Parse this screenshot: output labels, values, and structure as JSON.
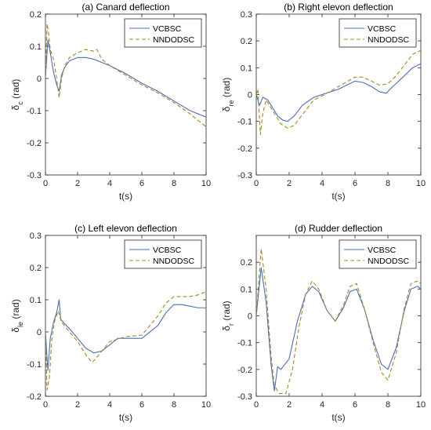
{
  "chart_data": [
    {
      "type": "line",
      "title": "(a) Canard deflection",
      "xlabel": "t(s)",
      "ylabel": {
        "main": "δ",
        "sub": "c",
        "unit": " (rad)"
      },
      "xlim": [
        0,
        10
      ],
      "ylim": [
        -0.3,
        0.2
      ],
      "xticks": [
        0,
        2,
        4,
        6,
        8,
        10
      ],
      "yticks": [
        -0.3,
        -0.2,
        -0.1,
        0,
        0.1,
        0.2
      ],
      "grid": false,
      "legend": "top-right",
      "series": [
        {
          "name": "VCBSC",
          "color": "#4a6fb5",
          "dash": "",
          "x": [
            0,
            0.15,
            0.3,
            0.5,
            0.7,
            0.85,
            1.0,
            1.2,
            1.5,
            2.0,
            2.5,
            3.0,
            3.5,
            4.0,
            5.0,
            6.0,
            7.0,
            8.0,
            9.0,
            10.0
          ],
          "y": [
            0.0,
            0.12,
            0.08,
            0.02,
            -0.02,
            -0.04,
            0.01,
            0.035,
            0.055,
            0.065,
            0.065,
            0.06,
            0.05,
            0.04,
            0.015,
            -0.015,
            -0.04,
            -0.07,
            -0.1,
            -0.12
          ]
        },
        {
          "name": "NNDODSC",
          "color": "#a08a1f",
          "dash": "5,3",
          "x": [
            0,
            0.1,
            0.2,
            0.3,
            0.5,
            0.7,
            0.85,
            1.0,
            1.2,
            1.5,
            2.0,
            2.5,
            3.0,
            3.2,
            3.5,
            4.0,
            5.0,
            6.0,
            7.0,
            8.0,
            9.0,
            10.0
          ],
          "y": [
            0.0,
            0.17,
            0.14,
            0.09,
            0.06,
            0.0,
            -0.06,
            0.0,
            0.04,
            0.065,
            0.08,
            0.09,
            0.085,
            0.09,
            0.06,
            0.04,
            0.01,
            -0.02,
            -0.045,
            -0.075,
            -0.11,
            -0.15
          ]
        }
      ]
    },
    {
      "type": "line",
      "title": "(b) Right elevon deflection",
      "xlabel": "t(s)",
      "ylabel": {
        "main": "δ",
        "sub": "re",
        "unit": " (rad)"
      },
      "xlim": [
        0,
        10
      ],
      "ylim": [
        -0.3,
        0.3
      ],
      "xticks": [
        0,
        2,
        4,
        6,
        8,
        10
      ],
      "yticks": [
        -0.3,
        -0.2,
        -0.1,
        0,
        0.1,
        0.2,
        0.3
      ],
      "grid": false,
      "legend": "top-right",
      "series": [
        {
          "name": "VCBSC",
          "color": "#4a6fb5",
          "dash": "",
          "x": [
            0,
            0.2,
            0.4,
            0.7,
            1.0,
            1.3,
            1.6,
            1.9,
            2.3,
            2.8,
            3.5,
            4.0,
            5.0,
            6.0,
            6.5,
            7.0,
            7.5,
            7.9,
            8.3,
            9.0,
            9.5,
            10.0
          ],
          "y": [
            0.0,
            -0.04,
            -0.01,
            -0.02,
            -0.05,
            -0.08,
            -0.095,
            -0.1,
            -0.08,
            -0.04,
            -0.01,
            0.0,
            0.02,
            0.05,
            0.045,
            0.03,
            0.01,
            0.005,
            0.03,
            0.07,
            0.1,
            0.115
          ]
        },
        {
          "name": "NNDODSC",
          "color": "#a08a1f",
          "dash": "5,3",
          "x": [
            0,
            0.1,
            0.25,
            0.4,
            0.6,
            0.9,
            1.2,
            1.5,
            1.9,
            2.3,
            2.8,
            3.5,
            4.0,
            5.0,
            6.0,
            6.5,
            7.0,
            7.5,
            8.0,
            8.5,
            9.0,
            9.5,
            10.0
          ],
          "y": [
            0.0,
            0.02,
            -0.15,
            -0.07,
            -0.02,
            -0.05,
            -0.08,
            -0.11,
            -0.125,
            -0.115,
            -0.075,
            -0.02,
            -0.005,
            0.03,
            0.065,
            0.065,
            0.05,
            0.035,
            0.04,
            0.07,
            0.11,
            0.15,
            0.165
          ]
        }
      ]
    },
    {
      "type": "line",
      "title": "(c) Left elevon deflection",
      "xlabel": "t(s)",
      "ylabel": {
        "main": "δ",
        "sub": "le",
        "unit": " (rad)"
      },
      "xlim": [
        0,
        10
      ],
      "ylim": [
        -0.2,
        0.3
      ],
      "xticks": [
        0,
        2,
        4,
        6,
        8,
        10
      ],
      "yticks": [
        -0.2,
        -0.1,
        0,
        0.1,
        0.2,
        0.3
      ],
      "grid": false,
      "legend": "top-right",
      "series": [
        {
          "name": "VCBSC",
          "color": "#4a6fb5",
          "dash": "",
          "x": [
            0,
            0.15,
            0.3,
            0.5,
            0.7,
            0.85,
            0.95,
            1.1,
            1.5,
            2.0,
            2.5,
            3.0,
            3.5,
            4.0,
            4.5,
            5.0,
            6.0,
            7.0,
            7.5,
            8.0,
            8.5,
            9.0,
            9.5,
            10.0
          ],
          "y": [
            0.0,
            -0.12,
            -0.02,
            0.03,
            0.06,
            0.1,
            0.04,
            0.03,
            0.01,
            -0.02,
            -0.05,
            -0.065,
            -0.06,
            -0.04,
            -0.02,
            -0.02,
            -0.02,
            0.02,
            0.06,
            0.085,
            0.085,
            0.08,
            0.075,
            0.075
          ]
        },
        {
          "name": "NNDODSC",
          "color": "#a08a1f",
          "dash": "5,3",
          "x": [
            0,
            0.1,
            0.25,
            0.4,
            0.6,
            0.8,
            1.0,
            1.5,
            2.0,
            2.5,
            2.9,
            3.1,
            3.5,
            4.0,
            5.0,
            6.0,
            7.0,
            7.5,
            8.0,
            9.0,
            9.5,
            10.0
          ],
          "y": [
            0.0,
            -0.18,
            -0.14,
            -0.02,
            0.04,
            0.065,
            0.03,
            0.0,
            -0.03,
            -0.07,
            -0.095,
            -0.085,
            -0.06,
            -0.03,
            -0.015,
            -0.01,
            0.05,
            0.09,
            0.11,
            0.11,
            0.115,
            0.125
          ]
        }
      ]
    },
    {
      "type": "line",
      "title": "(d) Rudder deflection",
      "xlabel": "t(s)",
      "ylabel": {
        "main": "δ",
        "sub": "r",
        "unit": " (rad)"
      },
      "xlim": [
        0,
        10
      ],
      "ylim": [
        -0.3,
        0.3
      ],
      "xticks": [
        0,
        2,
        4,
        6,
        8,
        10
      ],
      "yticks": [
        -0.3,
        -0.2,
        -0.1,
        0,
        0.1,
        0.2
      ],
      "grid": false,
      "legend": "top-right",
      "series": [
        {
          "name": "VCBSC",
          "color": "#4a6fb5",
          "dash": "",
          "x": [
            0,
            0.3,
            0.6,
            0.9,
            1.1,
            1.3,
            1.5,
            2.0,
            2.5,
            3.0,
            3.4,
            3.8,
            4.3,
            4.8,
            5.3,
            5.7,
            6.1,
            6.6,
            7.1,
            7.6,
            8.0,
            8.5,
            9.0,
            9.4,
            9.8,
            10.0
          ],
          "y": [
            0.0,
            0.18,
            0.05,
            -0.18,
            -0.28,
            -0.19,
            -0.2,
            -0.16,
            -0.02,
            0.08,
            0.11,
            0.09,
            0.02,
            -0.02,
            0.03,
            0.09,
            0.1,
            0.02,
            -0.09,
            -0.18,
            -0.2,
            -0.12,
            0.02,
            0.1,
            0.11,
            0.1
          ]
        },
        {
          "name": "NNDODSC",
          "color": "#a08a1f",
          "dash": "5,3",
          "x": [
            0,
            0.3,
            0.6,
            0.9,
            1.1,
            1.4,
            1.8,
            2.2,
            2.6,
            3.0,
            3.4,
            3.8,
            4.3,
            4.8,
            5.3,
            5.7,
            6.1,
            6.6,
            7.1,
            7.6,
            8.0,
            8.5,
            9.0,
            9.4,
            9.8,
            10.0
          ],
          "y": [
            0.0,
            0.25,
            0.1,
            -0.15,
            -0.26,
            -0.29,
            -0.29,
            -0.2,
            -0.04,
            0.08,
            0.13,
            0.1,
            0.02,
            -0.02,
            0.04,
            0.11,
            0.12,
            0.02,
            -0.1,
            -0.21,
            -0.24,
            -0.14,
            0.03,
            0.12,
            0.13,
            0.12
          ]
        }
      ]
    }
  ]
}
